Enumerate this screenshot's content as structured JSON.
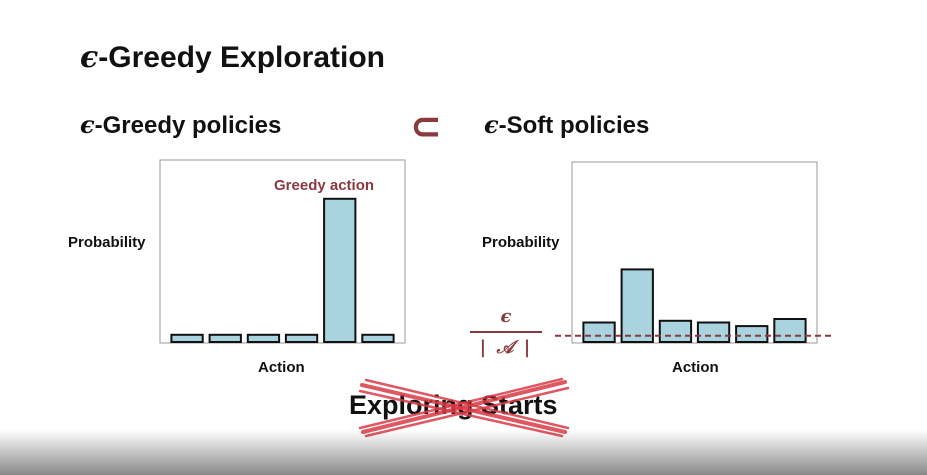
{
  "title": "-Greedy Exploration",
  "epsilon_symbol": "ϵ",
  "left": {
    "subtitle": "-Greedy policies",
    "ylabel": "Probability",
    "xlabel": "Action",
    "annotation": "Greedy action"
  },
  "subset_symbol": "⊂",
  "right": {
    "subtitle": "-Soft policies",
    "ylabel": "Probability",
    "xlabel": "Action",
    "epsilon_fraction": {
      "numerator": "ϵ",
      "denominator": "| 𝒜 |"
    }
  },
  "struck_text": "Exploring Starts",
  "colors": {
    "bar_fill": "#a8d3df",
    "accent": "#8a3a3f",
    "cross": "#d93a45"
  },
  "chart_data": [
    {
      "type": "bar",
      "title": "",
      "xlabel": "Action",
      "ylabel": "Probability",
      "categories": [
        "",
        "",
        "",
        "",
        "",
        ""
      ],
      "values": [
        0.04,
        0.04,
        0.04,
        0.04,
        0.8,
        0.04
      ],
      "ylim": [
        0,
        1
      ],
      "grid": false,
      "annotation": "Greedy action"
    },
    {
      "type": "bar",
      "title": "",
      "xlabel": "Action",
      "ylabel": "Probability",
      "categories": [
        "",
        "",
        "",
        "",
        "",
        ""
      ],
      "values": [
        0.11,
        0.41,
        0.12,
        0.11,
        0.09,
        0.13
      ],
      "ylim": [
        0,
        1
      ],
      "grid": false,
      "reference_line": {
        "label": "ϵ / |𝒜|",
        "value": 0.035,
        "style": "dashed"
      }
    }
  ]
}
